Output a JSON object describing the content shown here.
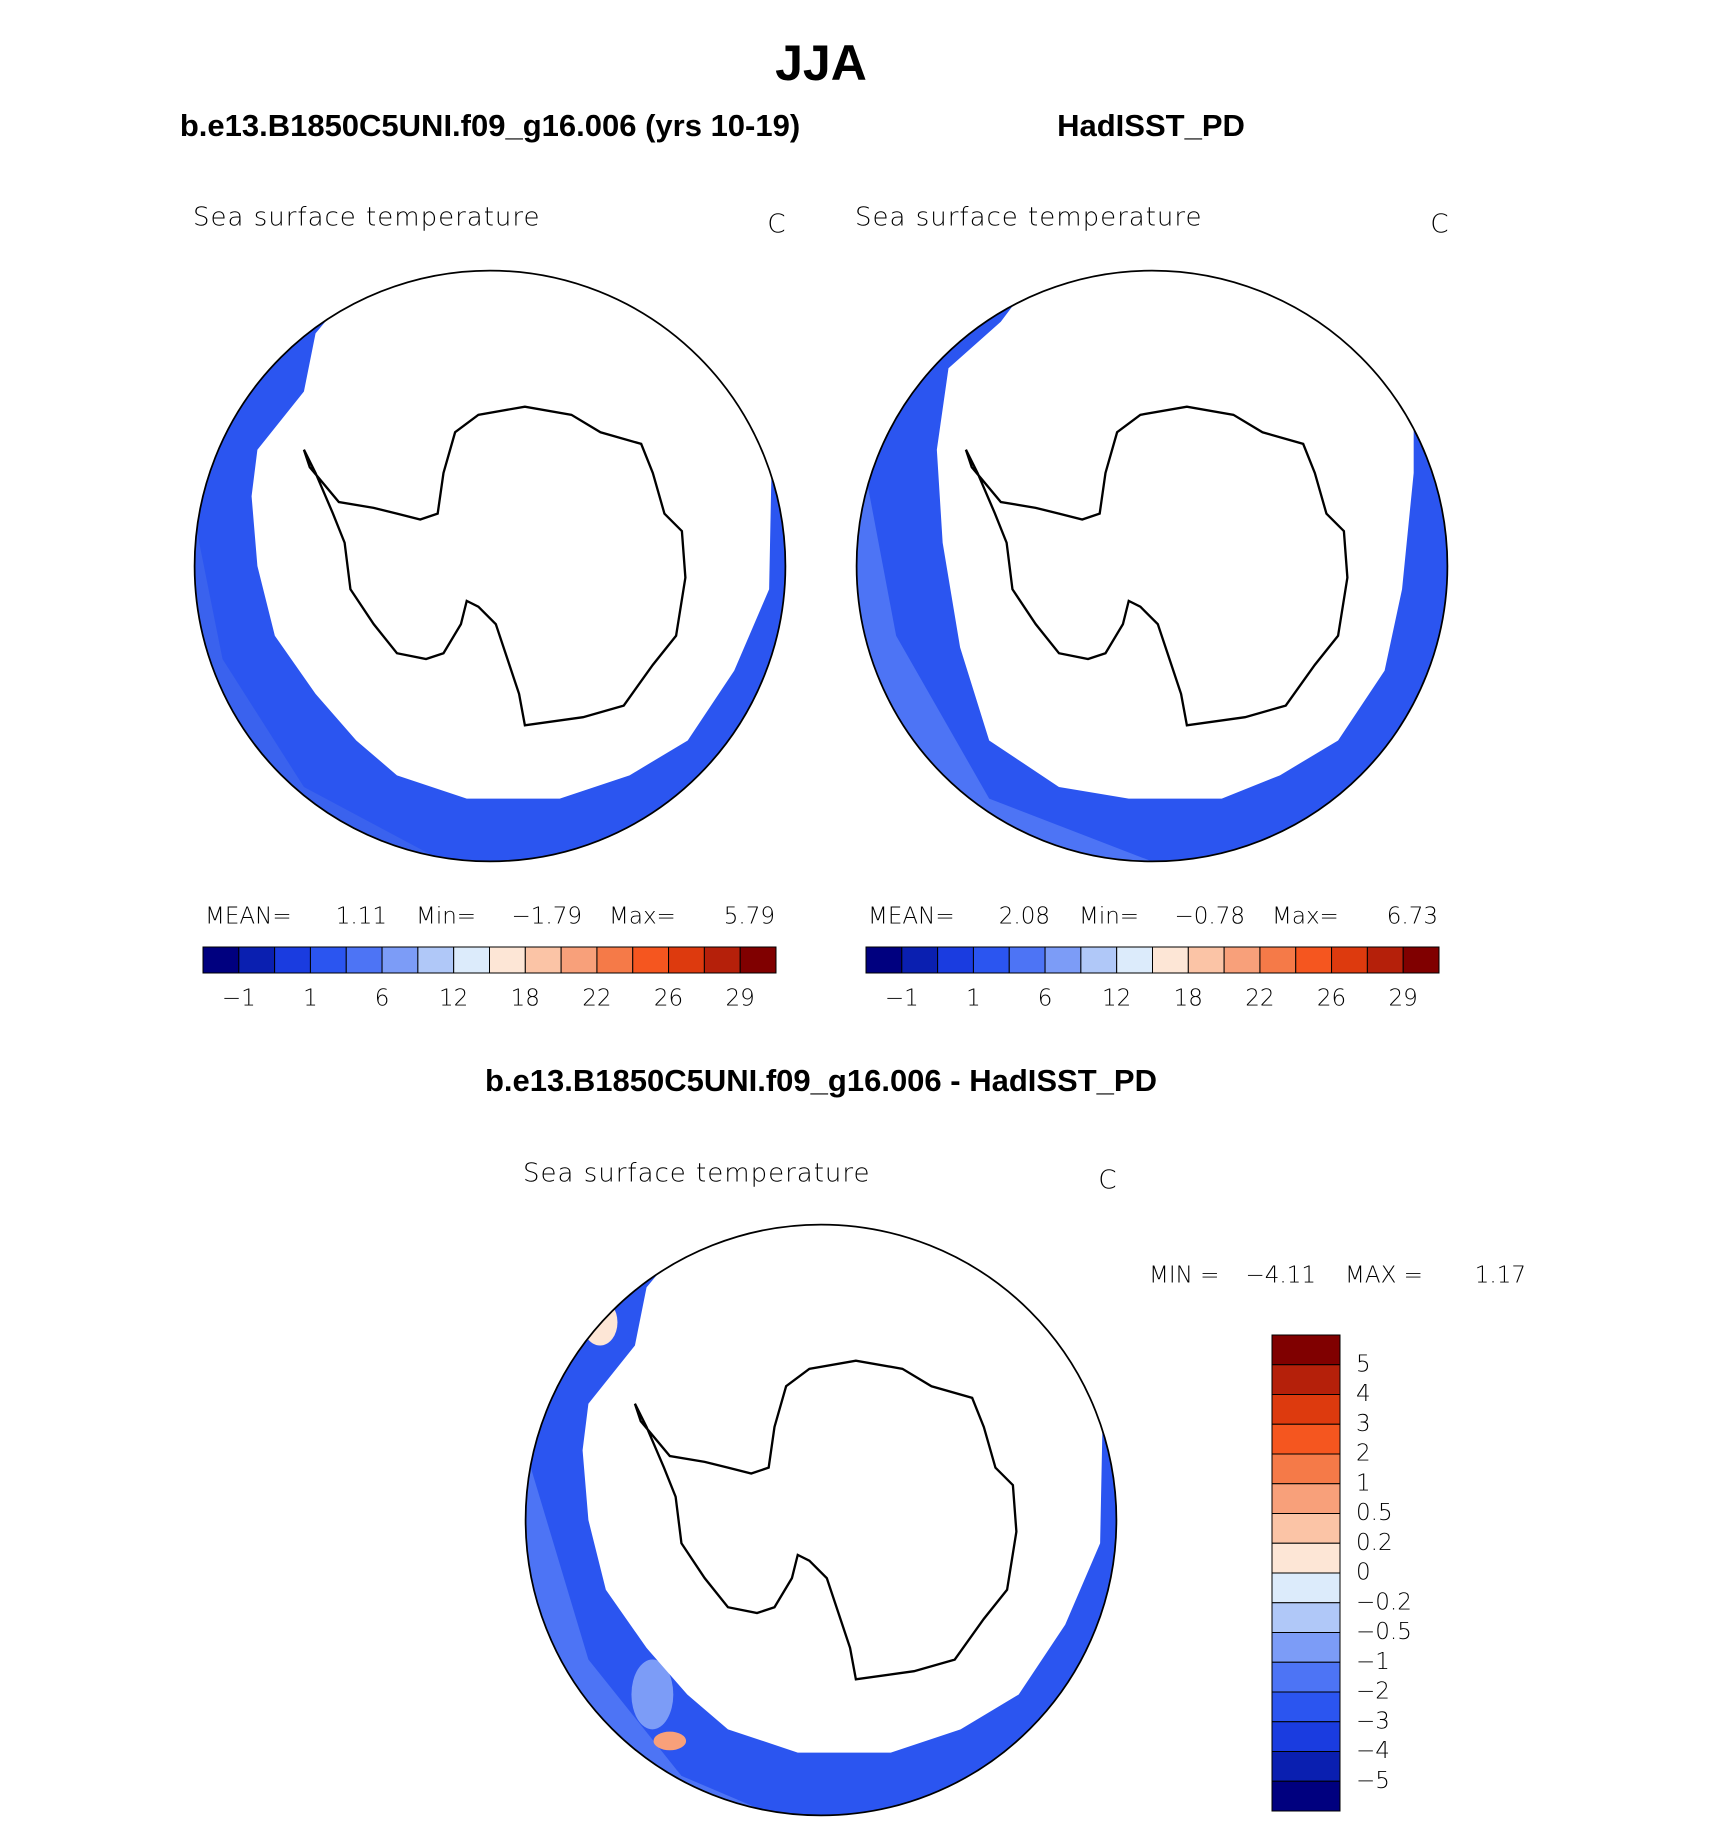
{
  "title": "JJA",
  "panels": [
    {
      "subtitle": "b.e13.B1850C5UNI.f09_g16.006 (yrs 10-19)",
      "variable": "Sea surface temperature",
      "units": "C",
      "stats": {
        "mean_label": "MEAN=",
        "mean": "1.11",
        "min_label": "Min=",
        "min": "−1.79",
        "max_label": "Max=",
        "max": "5.79"
      },
      "colorbar": {
        "colors": [
          "#00007f",
          "#0a1fb0",
          "#1a3ce0",
          "#2b55f0",
          "#4d74f5",
          "#7c9cf7",
          "#b0c8f8",
          "#dcebfb",
          "#fde6d6",
          "#fbc4a6",
          "#f8a07a",
          "#f57a48",
          "#f5561f",
          "#dd3a0e",
          "#b5200a",
          "#800000"
        ],
        "labels": [
          "−1",
          "1",
          "6",
          "12",
          "18",
          "22",
          "26",
          "29"
        ]
      }
    },
    {
      "subtitle": "HadISST_PD",
      "variable": "Sea surface temperature",
      "units": "C",
      "stats": {
        "mean_label": "MEAN=",
        "mean": "2.08",
        "min_label": "Min=",
        "min": "−0.78",
        "max_label": "Max=",
        "max": "6.73"
      },
      "colorbar": {
        "colors": [
          "#00007f",
          "#0a1fb0",
          "#1a3ce0",
          "#2b55f0",
          "#4d74f5",
          "#7c9cf7",
          "#b0c8f8",
          "#dcebfb",
          "#fde6d6",
          "#fbc4a6",
          "#f8a07a",
          "#f57a48",
          "#f5561f",
          "#dd3a0e",
          "#b5200a",
          "#800000"
        ],
        "labels": [
          "−1",
          "1",
          "6",
          "12",
          "18",
          "22",
          "26",
          "29"
        ]
      }
    }
  ],
  "difference": {
    "title": "b.e13.B1850C5UNI.f09_g16.006 - HadISST_PD",
    "variable": "Sea surface temperature",
    "units": "C",
    "stats": {
      "min_label": "MIN =",
      "min": "−4.11",
      "max_label": "MAX =",
      "max": "1.17"
    },
    "colorbar": {
      "colors": [
        "#800000",
        "#b5200a",
        "#dd3a0e",
        "#f5561f",
        "#f57a48",
        "#f8a07a",
        "#fbc4a6",
        "#fde6d6",
        "#dcebfb",
        "#b0c8f8",
        "#7c9cf7",
        "#4d74f5",
        "#2b55f0",
        "#1a3ce0",
        "#0a1fb0",
        "#00007f"
      ],
      "labels": [
        "5",
        "4",
        "3",
        "2",
        "1",
        "0.5",
        "0.2",
        "0",
        "−0.2",
        "−0.5",
        "−1",
        "−2",
        "−3",
        "−4",
        "−5"
      ]
    }
  }
}
